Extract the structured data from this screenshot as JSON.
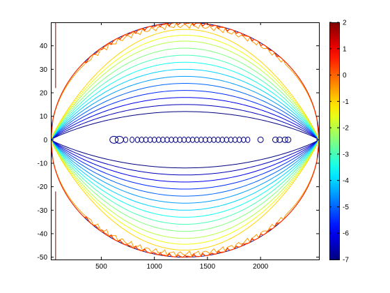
{
  "chart_data": [
    {
      "type": "contour",
      "title": "",
      "xlabel": "",
      "ylabel": "",
      "xlim": [
        25,
        2550
      ],
      "ylim": [
        -51,
        50
      ],
      "xticks": [
        500,
        1000,
        1500,
        2000
      ],
      "yticks": [
        -50,
        -40,
        -30,
        -20,
        -10,
        0,
        10,
        20,
        30,
        40
      ],
      "grid": false,
      "domain": {
        "shape": "ellipse",
        "x_center": 1288,
        "y_center": 0,
        "x_semi_axis": 1263,
        "y_semi_axis": 50
      },
      "contour_levels": [
        -7,
        -6.5,
        -6,
        -5.5,
        -5,
        -4.5,
        -4,
        -3.5,
        -3,
        -2.5,
        -2,
        -1.5,
        -1,
        -0.5,
        0,
        0.5
      ],
      "contour_half_heights": [
        12,
        15,
        18,
        21,
        24,
        27,
        30,
        33,
        36,
        39,
        42,
        44.5,
        47,
        48.5,
        50,
        50
      ],
      "inner_bubbles_y": 0,
      "inner_bubbles_x": [
        620,
        670,
        730,
        790,
        840,
        880,
        920,
        960,
        1000,
        1040,
        1080,
        1120,
        1160,
        1200,
        1240,
        1280,
        1320,
        1360,
        1400,
        1440,
        1480,
        1520,
        1560,
        1600,
        1640,
        1680,
        1720,
        1760,
        1800,
        1840,
        1880,
        2000,
        2140,
        2180,
        2230,
        2260
      ]
    },
    {
      "type": "colorbar",
      "clim": [
        -7,
        2
      ],
      "ticks": [
        2,
        1,
        0,
        -1,
        -2,
        -3,
        -4,
        -5,
        -6,
        -7
      ],
      "colormap": "jet"
    }
  ]
}
